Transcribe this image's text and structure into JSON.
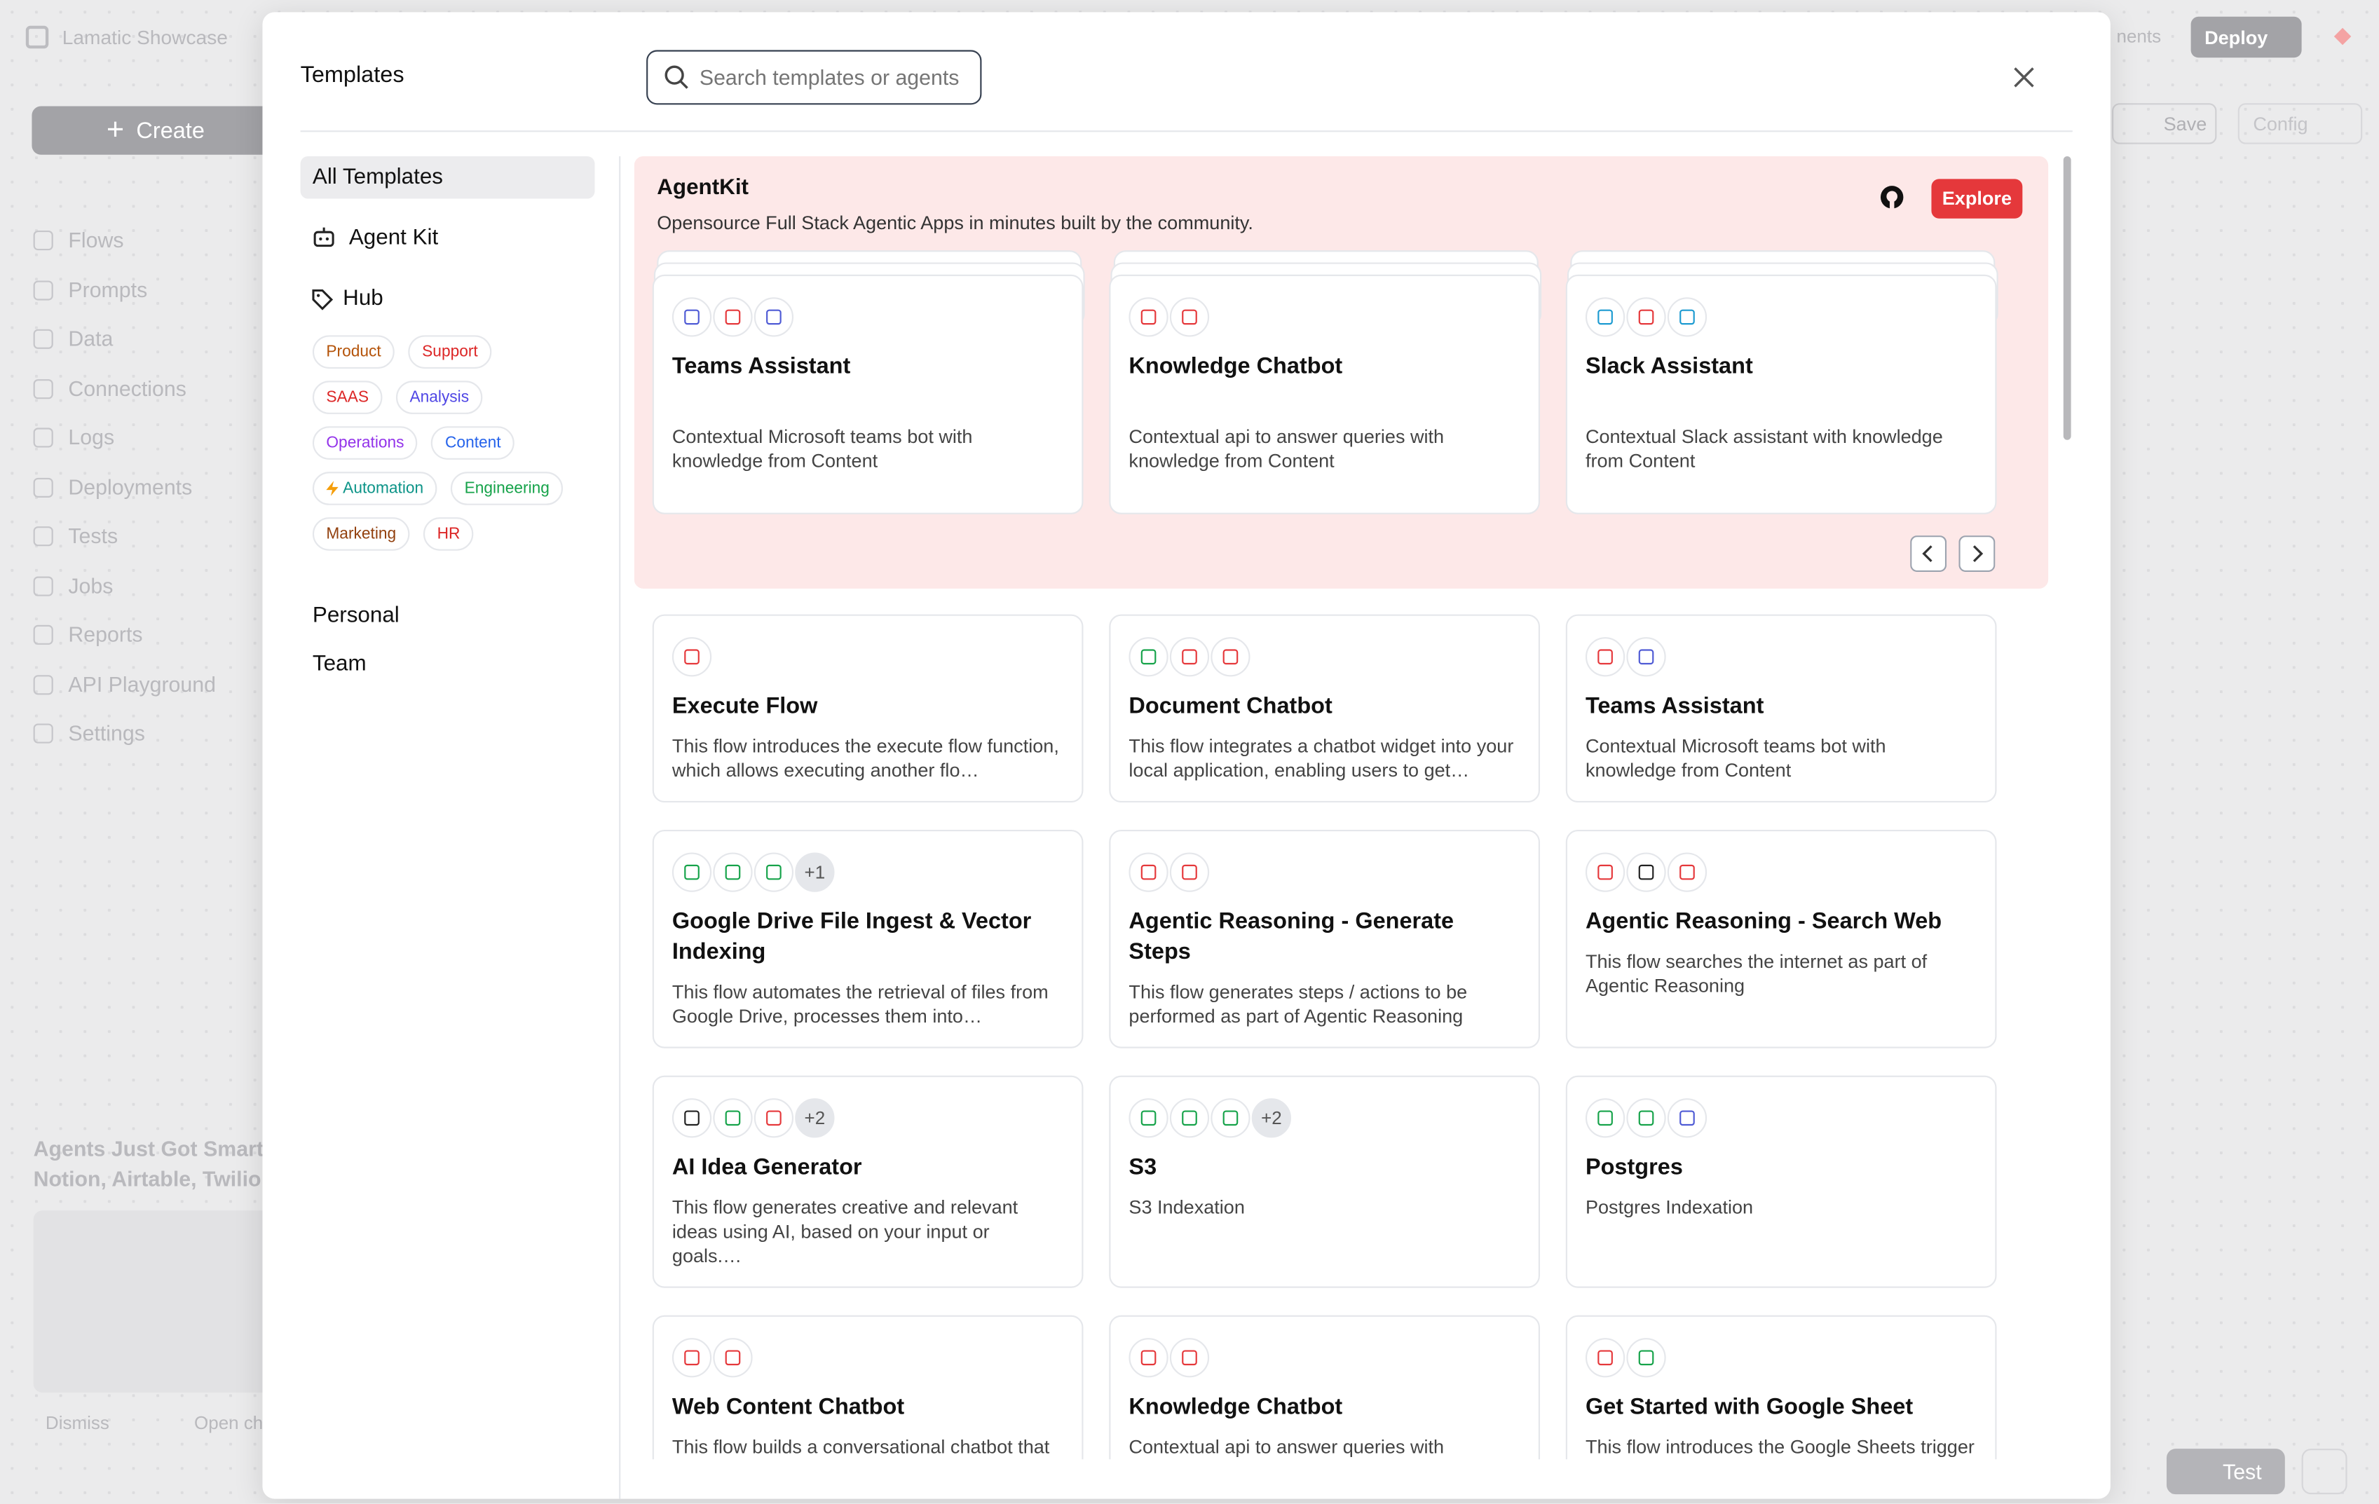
{
  "app": {
    "workspace": "Lamatic Showcase",
    "create": "Create",
    "nav": [
      "Flows",
      "Prompts",
      "Data",
      "Connections",
      "Logs",
      "Deployments",
      "Tests",
      "Jobs",
      "Reports",
      "API Playground",
      "Settings"
    ],
    "promo": {
      "title": "Agents Just Got Smart",
      "subtitle": "Notion, Airtable, Twilio",
      "dismiss": "Dismiss",
      "open": "Open ch"
    },
    "topbar": {
      "environments": "nents",
      "deploy": "Deploy",
      "save": "Save",
      "config": "Config",
      "test": "Test"
    }
  },
  "modal": {
    "title": "Templates",
    "search_placeholder": "Search templates or agents",
    "sidebar": {
      "all": "All Templates",
      "agent_kit": "Agent Kit",
      "hub": "Hub",
      "tags": [
        {
          "label": "Product",
          "color": "#b45309"
        },
        {
          "label": "Support",
          "color": "#dc2626"
        },
        {
          "label": "SAAS",
          "color": "#dc2626"
        },
        {
          "label": "Analysis",
          "color": "#4f46e5"
        },
        {
          "label": "Operations",
          "color": "#9333ea"
        },
        {
          "label": "Content",
          "color": "#2563eb"
        },
        {
          "label": "Automation",
          "color": "#0d9488"
        },
        {
          "label": "Engineering",
          "color": "#16a34a"
        },
        {
          "label": "Marketing",
          "color": "#92400e"
        },
        {
          "label": "HR",
          "color": "#dc2626"
        }
      ],
      "personal": "Personal",
      "team": "Team"
    },
    "agentkit": {
      "title": "AgentKit",
      "subtitle": "Opensource Full Stack Agentic Apps in minutes built by the community.",
      "explore": "Explore",
      "cards": [
        {
          "title": "Teams Assistant",
          "description": "Contextual Microsoft teams bot with knowledge from Content"
        },
        {
          "title": "Knowledge Chatbot",
          "description": "Contextual api to answer queries with knowledge from Content"
        },
        {
          "title": "Slack Assistant",
          "description": "Contextual Slack assistant with knowledge from Content"
        }
      ]
    },
    "templates": [
      {
        "title": "Execute Flow",
        "description": "This flow introduces the execute flow function, which allows executing another flo…"
      },
      {
        "title": "Document Chatbot",
        "description": "This flow integrates a chatbot widget into your local application, enabling users to get…"
      },
      {
        "title": "Teams Assistant",
        "description": "Contextual Microsoft teams bot with knowledge from Content"
      },
      {
        "title": "Google Drive File Ingest & Vector Indexing",
        "description": "This flow automates the retrieval of files from Google Drive, processes them into…",
        "extra": "+1"
      },
      {
        "title": "Agentic Reasoning - Generate Steps",
        "description": "This flow generates steps / actions to be performed as part of Agentic Reasoning"
      },
      {
        "title": "Agentic Reasoning - Search Web",
        "description": "This flow searches the internet as part of Agentic Reasoning"
      },
      {
        "title": "AI Idea Generator",
        "description": "This flow generates creative and relevant ideas using AI, based on your input or goals.…",
        "extra": "+2"
      },
      {
        "title": "S3",
        "description": "S3 Indexation",
        "extra": "+2"
      },
      {
        "title": "Postgres",
        "description": "Postgres Indexation"
      },
      {
        "title": "Web Content Chatbot",
        "description": "This flow builds a conversational chatbot that leverages Retrieval-Augmented Generation…"
      },
      {
        "title": "Knowledge Chatbot",
        "description": "Contextual api to answer queries with knowledge from Content"
      },
      {
        "title": "Get Started with Google Sheet",
        "description": "This flow introduces the Google Sheets trigger node and a RAG node which helps…"
      }
    ]
  }
}
